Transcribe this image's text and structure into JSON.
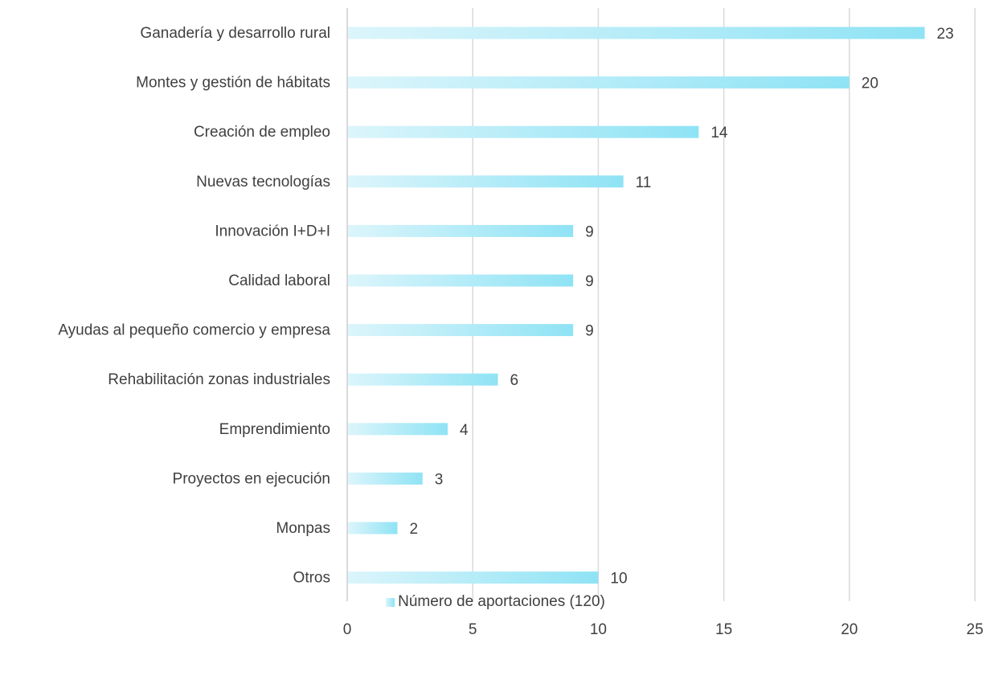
{
  "chart_data": {
    "type": "bar",
    "orientation": "horizontal",
    "categories": [
      "Ganadería y desarrollo rural",
      "Montes y gestión de hábitats",
      "Creación de empleo",
      "Nuevas tecnologías",
      "Innovación I+D+I",
      "Calidad laboral",
      "Ayudas al pequeño comercio y  empresa",
      "Rehabilitación zonas industriales",
      "Emprendimiento",
      "Proyectos en ejecución",
      "Monpas",
      "Otros"
    ],
    "series": [
      {
        "name": "Número de aportaciones (120)",
        "values": [
          23,
          20,
          14,
          11,
          9,
          9,
          9,
          6,
          4,
          3,
          2,
          10
        ]
      }
    ],
    "data_labels": [
      "23",
      "20",
      "14",
      "11",
      "9",
      "9",
      "9",
      "6",
      "4",
      "3",
      "2",
      "10"
    ],
    "xlim": [
      0,
      25
    ],
    "xticks": [
      0,
      5,
      10,
      15,
      20,
      25
    ],
    "xtick_labels": [
      "0",
      "5",
      "10",
      "15",
      "20",
      "25"
    ],
    "grid": "vertical",
    "legend_position": "bottom",
    "colors": {
      "bar_start": "#dcf5fb",
      "bar_end": "#8fe3f5",
      "grid": "#d9d9d9",
      "text": "#404040"
    }
  }
}
